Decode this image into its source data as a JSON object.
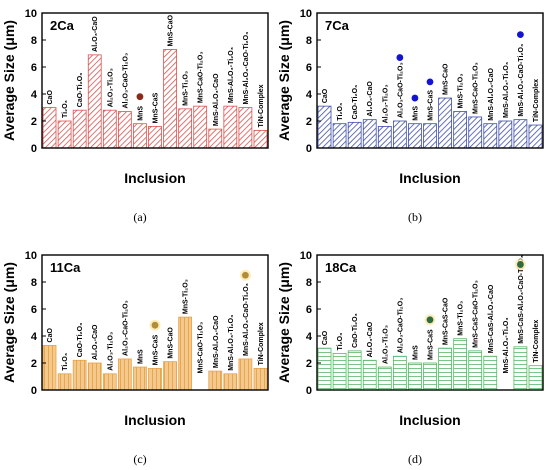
{
  "y_axis_label": "Average Size (μm)",
  "x_axis_label": "Inclusion",
  "chart_data": [
    {
      "type": "bar",
      "panel_letter": "(a)",
      "title": "2Ca",
      "color": "#d9534f",
      "marker_color": "#8b2a1a",
      "ylim": [
        0,
        10
      ],
      "yticks": [
        "0",
        "2",
        "4",
        "6",
        "8",
        "10"
      ],
      "categories": [
        "CaO",
        "Ti₂O₃",
        "CaO-Ti₂O₃",
        "Al₂O₃-CaO",
        "Al₂O₃-Ti₂O₃",
        "Al₂O₃-CaO-Ti₂O₃",
        "MnS",
        "MnS-CaS",
        "MnS-CaO",
        "MnS-Ti₂O₃",
        "MnS-CaO-Ti₂O₃",
        "MnS-Al₂O₃-CaO",
        "MnS-Al₂O₃-Ti₂O₃",
        "MnS-Al₂O₃-CaO-Ti₂O₃",
        "TiN-Complex"
      ],
      "values": [
        3.0,
        2.0,
        2.8,
        6.9,
        2.8,
        2.7,
        1.8,
        1.6,
        7.3,
        2.9,
        3.1,
        1.4,
        3.1,
        3.0,
        1.3
      ],
      "marker_categories": [
        "MnS"
      ],
      "marker_values": [
        3.8
      ]
    },
    {
      "type": "bar",
      "panel_letter": "(b)",
      "title": "7Ca",
      "color": "#3f4fa8",
      "marker_color": "#1414d0",
      "ylim": [
        0,
        10
      ],
      "yticks": [
        "0",
        "2",
        "4",
        "6",
        "8",
        "10"
      ],
      "categories": [
        "CaO",
        "Ti₂O₃",
        "CaO-Ti₂O₃",
        "Al₂O₃-CaO",
        "Al₂O₃-Ti₂O₃",
        "Al₂O₃-CaO-Ti₂O₃",
        "MnS",
        "MnS-CaS",
        "MnS-CaO",
        "MnS-Ti₂O₃",
        "MnS-CaO-Ti₂O₃",
        "MnS-Al₂O₃-CaO",
        "MnS-Al₂O₃-Ti₂O₃",
        "MnS-Al₂O₃-CaO-Ti₂O₃",
        "TiN-Complex"
      ],
      "values": [
        3.1,
        1.8,
        1.9,
        2.1,
        1.6,
        2.0,
        1.8,
        1.8,
        3.7,
        2.7,
        2.3,
        1.8,
        2.0,
        2.1,
        1.7
      ],
      "marker_categories": [
        "Al₂O₃-CaO-Ti₂O₃",
        "MnS",
        "MnS-CaS",
        "MnS-Al₂O₃-CaO-Ti₂O₃"
      ],
      "marker_values": [
        6.7,
        3.7,
        4.9,
        8.4
      ]
    },
    {
      "type": "bar",
      "panel_letter": "(c)",
      "title": "11Ca",
      "color": "#e8a247",
      "marker_color": "#b08d3e",
      "ylim": [
        0,
        10
      ],
      "yticks": [
        "0",
        "2",
        "4",
        "6",
        "8",
        "10"
      ],
      "categories": [
        "CaO",
        "Ti₂O₃",
        "CaO-Ti₂O₃",
        "Al₂O₃-CaO",
        "Al₂O₃-Ti₂O₃",
        "Al₂O₃-CaO-Ti₂O₃",
        "MnS",
        "MnS-CaS",
        "MnS-CaO",
        "MnS-Ti₂O₃",
        "MnS-CaO-Ti₂O₃",
        "MnS-Al₂O₃-CaO",
        "MnS-Al₂O₃-Ti₂O₃",
        "MnS-Al₂O₃-CaO-Ti₂O₃",
        "TiN-Complex"
      ],
      "values": [
        3.3,
        1.2,
        2.2,
        2.0,
        1.2,
        2.3,
        1.7,
        1.6,
        2.1,
        5.4,
        0,
        1.4,
        1.2,
        2.3,
        1.6
      ],
      "marker_categories": [
        "MnS-CaS",
        "MnS-Al₂O₃-CaO-Ti₂O₃"
      ],
      "marker_values": [
        4.8,
        8.5
      ]
    },
    {
      "type": "bar",
      "panel_letter": "(d)",
      "title": "18Ca",
      "color": "#5bb56b",
      "marker_color": "#2e6b3e",
      "ylim": [
        0,
        10
      ],
      "yticks": [
        "0",
        "2",
        "4",
        "6",
        "8",
        "10"
      ],
      "categories": [
        "CaO",
        "Ti₂O₃",
        "CaO-Ti₂O₃",
        "Al₂O₃-CaO",
        "Al₂O₃-Ti₂O₃",
        "Al₂O₃-CaO-Ti₂O₃",
        "MnS",
        "MnS-CaS",
        "MnS-CaS-CaO",
        "MnS-Ti₂O₃",
        "MnS-CaS-CaO-Ti₂O₃",
        "MnS-CaS-Al₂O₃-CaO",
        "MnS-Al₂O₃-Ti₂O₃",
        "MnS-CaS-Al₂O₃-CaO-Ti₂O₃",
        "TiN-Complex"
      ],
      "values": [
        3.1,
        2.7,
        2.9,
        2.2,
        1.7,
        2.5,
        2.0,
        2.0,
        3.1,
        3.8,
        2.9,
        2.5,
        0,
        3.2,
        1.8
      ],
      "marker_categories": [
        "MnS-CaS",
        "MnS-CaS-Al₂O₃-CaO-Ti₂O₃"
      ],
      "marker_values": [
        5.2,
        9.3
      ]
    }
  ]
}
